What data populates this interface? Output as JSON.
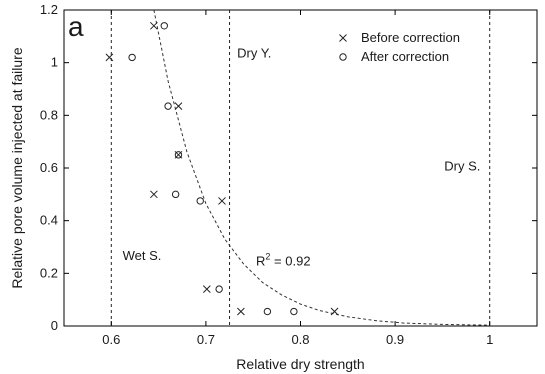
{
  "chart_data": {
    "type": "scatter",
    "panel_label": "a",
    "xlabel": "Relative dry strength",
    "ylabel": "Relative pore volume injected at failure",
    "xlim": [
      0.55,
      1.05
    ],
    "ylim": [
      0,
      1.2
    ],
    "xticks": [
      0.6,
      0.7,
      0.8,
      0.9,
      1
    ],
    "xtick_labels": [
      "0.6",
      "0.7",
      "0.8",
      "0.9",
      "1"
    ],
    "yticks": [
      0,
      0.2,
      0.4,
      0.6,
      0.8,
      1,
      1.2
    ],
    "ytick_labels": [
      "0",
      "0.2",
      "0.4",
      "0.6",
      "0.8",
      "1",
      "1.2"
    ],
    "grid": false,
    "legend_position": "top-right",
    "series": [
      {
        "name": "Before correction",
        "marker": "x",
        "x": [
          0.598,
          0.645,
          0.671,
          0.671,
          0.645,
          0.717,
          0.701,
          0.737,
          0.836
        ],
        "y": [
          1.02,
          1.14,
          0.835,
          0.65,
          0.5,
          0.475,
          0.14,
          0.055,
          0.055
        ]
      },
      {
        "name": "After correction",
        "marker": "o",
        "x": [
          0.622,
          0.656,
          0.66,
          0.671,
          0.668,
          0.694,
          0.714,
          0.765,
          0.793
        ],
        "y": [
          1.02,
          1.14,
          0.835,
          0.65,
          0.5,
          0.475,
          0.14,
          0.055,
          0.055
        ]
      }
    ],
    "fit_curve": {
      "style": "dashed",
      "x": [
        0.645,
        0.66,
        0.68,
        0.7,
        0.72,
        0.74,
        0.76,
        0.78,
        0.8,
        0.82,
        0.85,
        0.88,
        0.91,
        0.95,
        1.0
      ],
      "y": [
        1.2,
        0.93,
        0.66,
        0.465,
        0.33,
        0.235,
        0.165,
        0.118,
        0.083,
        0.059,
        0.035,
        0.02,
        0.011,
        0.006,
        0.003
      ]
    },
    "vertical_lines": [
      {
        "x": 0.6,
        "label": "Wet S.",
        "label_x": 0.612,
        "label_y": 0.25
      },
      {
        "x": 0.725,
        "label": "Dry Y.",
        "label_x": 0.733,
        "label_y": 1.02
      },
      {
        "x": 1.0,
        "label": "Dry S.",
        "label_x": 0.952,
        "label_y": 0.59
      }
    ],
    "annotation": {
      "text_main": "R",
      "superscript": "2",
      "text_rest": " = 0.92",
      "x": 0.753,
      "y": 0.23
    }
  }
}
